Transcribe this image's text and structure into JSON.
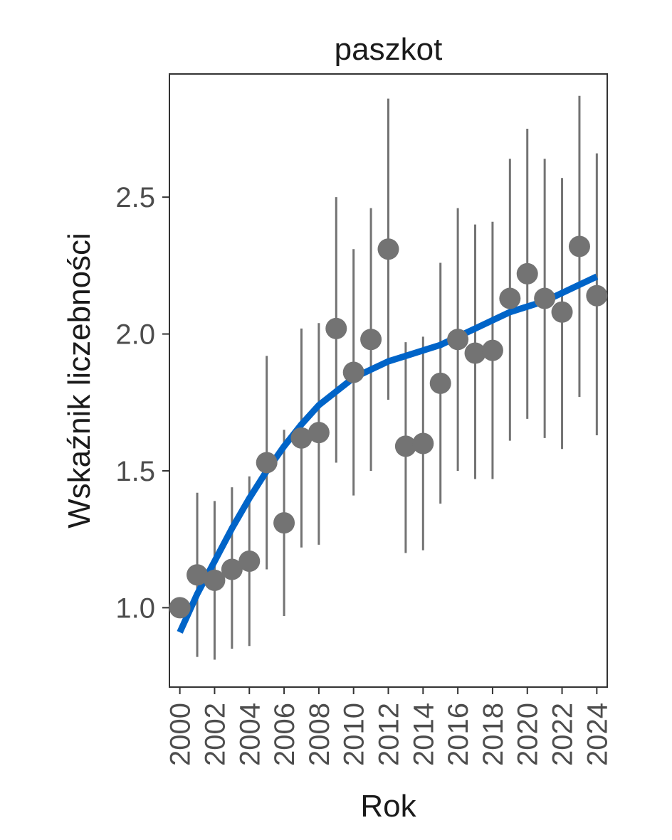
{
  "chart_data": {
    "type": "scatter",
    "title": "paszkot",
    "xlabel": "Rok",
    "ylabel": "Wskaźnik liczebności",
    "xlim": [
      1999.4,
      2024.6
    ],
    "ylim": [
      0.71,
      2.95
    ],
    "x_ticks": [
      2000,
      2002,
      2004,
      2006,
      2008,
      2010,
      2012,
      2014,
      2016,
      2018,
      2020,
      2022,
      2024
    ],
    "x_tick_labels": [
      "2000",
      "2002",
      "2004",
      "2006",
      "2008",
      "2010",
      "2012",
      "2014",
      "2016",
      "2018",
      "2020",
      "2022",
      "2024"
    ],
    "y_ticks": [
      1.0,
      1.5,
      2.0,
      2.5
    ],
    "y_tick_labels": [
      "1.0",
      "1.5",
      "2.0",
      "2.5"
    ],
    "grid": false,
    "series": [
      {
        "type": "errorbar-points",
        "color": "#737373",
        "x": [
          2000,
          2001,
          2002,
          2003,
          2004,
          2005,
          2006,
          2007,
          2008,
          2009,
          2010,
          2011,
          2012,
          2013,
          2014,
          2015,
          2016,
          2017,
          2018,
          2019,
          2020,
          2021,
          2022,
          2023,
          2024
        ],
        "y": [
          1.0,
          1.12,
          1.1,
          1.14,
          1.17,
          1.53,
          1.31,
          1.62,
          1.64,
          2.02,
          1.86,
          1.98,
          2.31,
          1.59,
          1.6,
          1.82,
          1.98,
          1.93,
          1.94,
          2.13,
          2.22,
          2.13,
          2.08,
          2.32,
          2.14
        ],
        "lower": [
          null,
          0.82,
          0.81,
          0.85,
          0.86,
          1.14,
          0.97,
          1.22,
          1.23,
          1.53,
          1.41,
          1.5,
          1.76,
          1.2,
          1.21,
          1.38,
          1.5,
          1.47,
          1.47,
          1.61,
          1.69,
          1.62,
          1.58,
          1.77,
          1.63
        ],
        "upper": [
          null,
          1.42,
          1.39,
          1.44,
          1.48,
          1.92,
          1.65,
          2.02,
          2.04,
          2.5,
          2.31,
          2.46,
          2.86,
          1.97,
          1.99,
          2.26,
          2.46,
          2.4,
          2.41,
          2.64,
          2.75,
          2.64,
          2.57,
          2.87,
          2.66
        ]
      },
      {
        "type": "smooth-line",
        "color": "#0064c8",
        "x": [
          2000,
          2001,
          2002,
          2003,
          2004,
          2005,
          2006,
          2007,
          2008,
          2009,
          2010,
          2011,
          2012,
          2013,
          2014,
          2015,
          2016,
          2017,
          2018,
          2019,
          2020,
          2021,
          2022,
          2023,
          2024
        ],
        "y": [
          0.91,
          1.05,
          1.17,
          1.29,
          1.4,
          1.5,
          1.59,
          1.67,
          1.74,
          1.79,
          1.84,
          1.87,
          1.9,
          1.92,
          1.94,
          1.96,
          1.99,
          2.02,
          2.05,
          2.08,
          2.1,
          2.12,
          2.15,
          2.18,
          2.21
        ]
      }
    ]
  }
}
